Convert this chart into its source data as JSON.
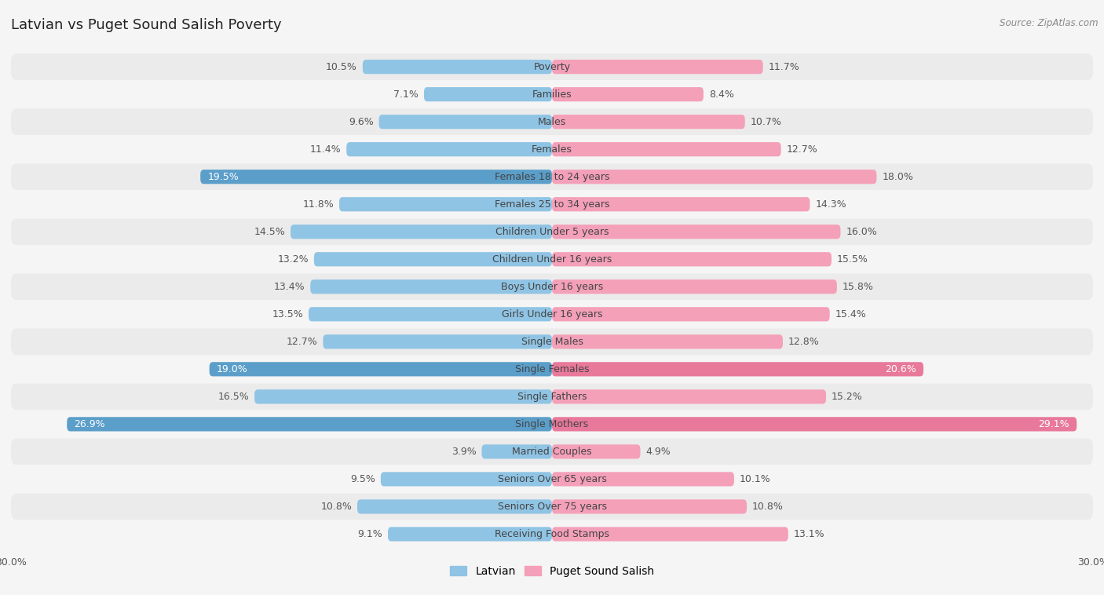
{
  "title": "Latvian vs Puget Sound Salish Poverty",
  "source": "Source: ZipAtlas.com",
  "categories": [
    "Poverty",
    "Families",
    "Males",
    "Females",
    "Females 18 to 24 years",
    "Females 25 to 34 years",
    "Children Under 5 years",
    "Children Under 16 years",
    "Boys Under 16 years",
    "Girls Under 16 years",
    "Single Males",
    "Single Females",
    "Single Fathers",
    "Single Mothers",
    "Married Couples",
    "Seniors Over 65 years",
    "Seniors Over 75 years",
    "Receiving Food Stamps"
  ],
  "latvian": [
    10.5,
    7.1,
    9.6,
    11.4,
    19.5,
    11.8,
    14.5,
    13.2,
    13.4,
    13.5,
    12.7,
    19.0,
    16.5,
    26.9,
    3.9,
    9.5,
    10.8,
    9.1
  ],
  "puget_sound": [
    11.7,
    8.4,
    10.7,
    12.7,
    18.0,
    14.3,
    16.0,
    15.5,
    15.8,
    15.4,
    12.8,
    20.6,
    15.2,
    29.1,
    4.9,
    10.1,
    10.8,
    13.1
  ],
  "latvian_color": "#90C4E4",
  "puget_sound_color": "#F4A0B8",
  "latvian_highlight_color": "#5B9EC9",
  "puget_sound_highlight_color": "#E8799A",
  "row_color_even": "#EBEBEB",
  "row_color_odd": "#F5F5F5",
  "background_color": "#F5F5F5",
  "axis_limit": 30.0,
  "bar_height": 0.52,
  "title_fontsize": 13,
  "label_fontsize": 9.0,
  "value_fontsize": 9.0,
  "tick_fontsize": 9,
  "legend_fontsize": 10,
  "latvian_highlight_indices": [
    4,
    11,
    13
  ],
  "puget_highlight_indices": [
    11,
    13
  ]
}
